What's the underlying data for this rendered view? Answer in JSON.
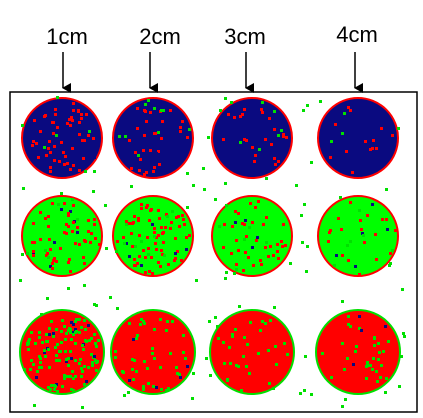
{
  "labels": [
    "1cm",
    "2cm",
    "3cm",
    "4cm"
  ]
}
